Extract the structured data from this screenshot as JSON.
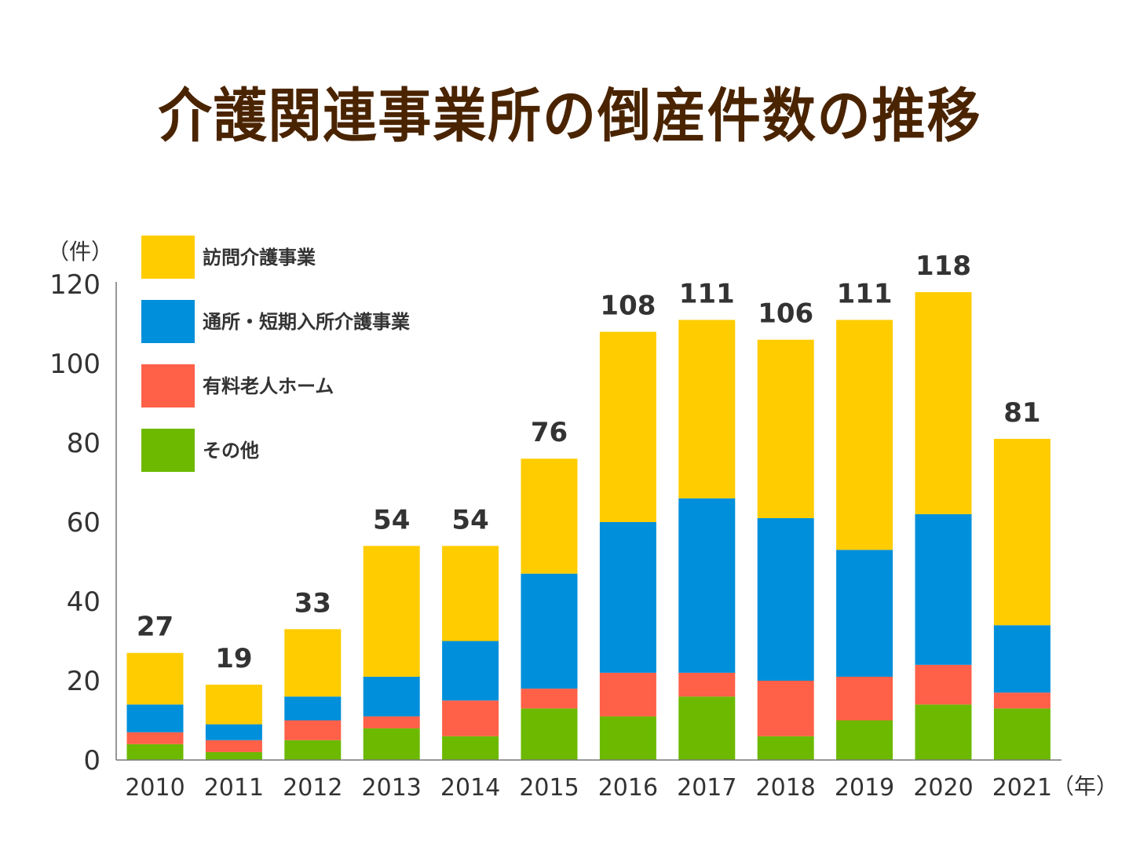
{
  "title": "介護関連事業所の倒産件数の推移",
  "chart_data": {
    "type": "bar",
    "stacked": true,
    "title": "介護関連事業所の倒産件数の推移",
    "xlabel": "（年）",
    "ylabel": "（件）",
    "ylim": [
      0,
      120
    ],
    "yticks": [
      0,
      20,
      40,
      60,
      80,
      100,
      120
    ],
    "grid": false,
    "legend_position": "top-left",
    "categories": [
      "2010",
      "2011",
      "2012",
      "2013",
      "2014",
      "2015",
      "2016",
      "2017",
      "2018",
      "2019",
      "2020",
      "2021"
    ],
    "series": [
      {
        "name": "その他",
        "color": "#6CB900",
        "values": [
          4,
          2,
          5,
          8,
          6,
          13,
          11,
          16,
          6,
          10,
          14,
          13
        ]
      },
      {
        "name": "有料老人ホーム",
        "color": "#FF6048",
        "values": [
          3,
          3,
          5,
          3,
          9,
          5,
          11,
          6,
          14,
          11,
          10,
          4
        ]
      },
      {
        "name": "通所・短期入所介護事業",
        "color": "#008FDA",
        "values": [
          7,
          4,
          6,
          10,
          15,
          29,
          38,
          44,
          41,
          32,
          38,
          17
        ]
      },
      {
        "name": "訪問介護事業",
        "color": "#FFCC00",
        "values": [
          13,
          10,
          17,
          33,
          24,
          29,
          48,
          45,
          45,
          58,
          56,
          47
        ]
      }
    ],
    "totals": [
      27,
      19,
      33,
      54,
      54,
      76,
      108,
      111,
      106,
      111,
      118,
      81
    ],
    "legend_order": [
      "訪問介護事業",
      "通所・短期入所介護事業",
      "有料老人ホーム",
      "その他"
    ]
  }
}
